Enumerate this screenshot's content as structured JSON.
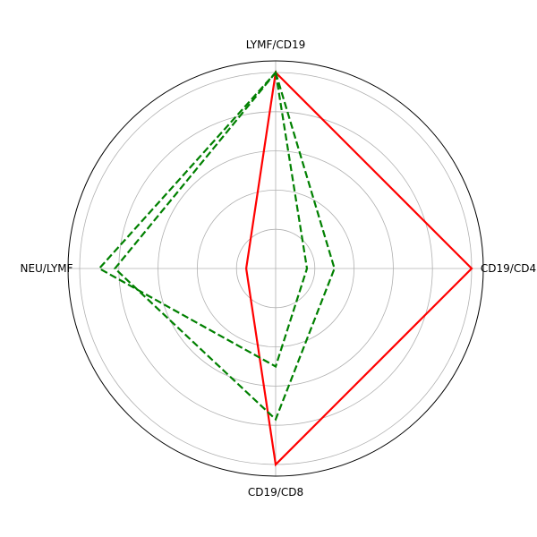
{
  "chart_data": {
    "type": "radar",
    "axes": [
      "LYMF/CD19",
      "CD19/CD4",
      "CD19/CD8",
      "NEU/LYMF"
    ],
    "rmax": 1.0,
    "grid": true,
    "series": [
      {
        "values": [
          1.0,
          1.0,
          1.0,
          0.15
        ],
        "color": "#ff0000",
        "dash": "solid"
      },
      {
        "values": [
          1.0,
          0.3,
          0.77,
          0.82
        ],
        "color": "#008000",
        "dash": "dashed"
      },
      {
        "values": [
          1.0,
          0.16,
          0.5,
          0.9
        ],
        "color": "#008000",
        "dash": "dashed"
      }
    ]
  }
}
